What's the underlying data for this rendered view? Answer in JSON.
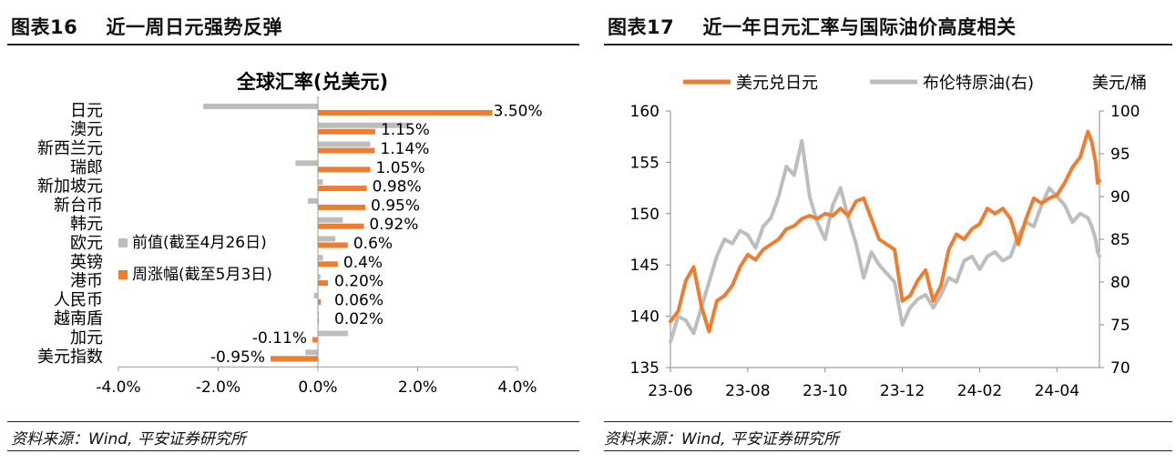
{
  "left_panel": {
    "figure_title": "图表16    近一周日元强势反弹",
    "source": "资料来源：Wind, 平安证券研究所"
  },
  "right_panel": {
    "figure_title": "图表17    近一年日元汇率与国际油价高度相关",
    "source": "资料来源：Wind, 平安证券研究所"
  },
  "colors": {
    "orange": "#ED7D31",
    "gray": "#BDBDBD",
    "axis": "#888888"
  },
  "chart_data": [
    {
      "type": "bar",
      "orientation": "horizontal",
      "title": "全球汇率(兑美元)",
      "categories": [
        "日元",
        "澳元",
        "新西兰元",
        "瑞郎",
        "新加坡元",
        "新台币",
        "韩元",
        "欧元",
        "英镑",
        "港币",
        "人民币",
        "越南盾",
        "加元",
        "美元指数"
      ],
      "series": [
        {
          "name": "前值(截至4月26日)",
          "color": "#BDBDBD",
          "values": [
            -2.3,
            1.8,
            1.05,
            -0.45,
            0.1,
            -0.2,
            0.5,
            0.35,
            0.1,
            0.05,
            -0.08,
            0.02,
            0.6,
            -0.25
          ]
        },
        {
          "name": "周涨幅(截至5月3日)",
          "color": "#ED7D31",
          "values": [
            3.5,
            1.15,
            1.14,
            1.05,
            0.98,
            0.95,
            0.92,
            0.6,
            0.4,
            0.2,
            0.06,
            0.02,
            -0.11,
            -0.95
          ]
        }
      ],
      "data_labels": [
        "3.50%",
        "1.15%",
        "1.14%",
        "1.05%",
        "0.98%",
        "0.95%",
        "0.92%",
        "0.6%",
        "0.4%",
        "0.20%",
        "0.06%",
        "0.02%",
        "-0.11%",
        "-0.95%"
      ],
      "xlim": [
        -4.0,
        4.0
      ],
      "xticks": [
        "-4.0%",
        "-2.0%",
        "0.0%",
        "2.0%",
        "4.0%"
      ],
      "legend_position": "left-middle",
      "grid": false
    },
    {
      "type": "line",
      "x_ticks": [
        "23-06",
        "23-08",
        "23-10",
        "23-12",
        "24-02",
        "24-04"
      ],
      "x_tick_months": [
        0,
        2,
        4,
        6,
        8,
        10
      ],
      "x_range_months": [
        0,
        11.1
      ],
      "series": [
        {
          "name": "美元兑日元",
          "color": "#ED7D31",
          "axis": "left",
          "x_months": [
            0,
            0.2,
            0.4,
            0.6,
            0.8,
            1.0,
            1.2,
            1.4,
            1.6,
            1.8,
            2.0,
            2.2,
            2.4,
            2.6,
            2.8,
            3.0,
            3.2,
            3.4,
            3.6,
            3.8,
            4.0,
            4.2,
            4.4,
            4.6,
            4.8,
            5.0,
            5.2,
            5.4,
            5.6,
            5.8,
            6.0,
            6.2,
            6.4,
            6.6,
            6.8,
            7.0,
            7.2,
            7.4,
            7.6,
            7.8,
            8.0,
            8.2,
            8.4,
            8.6,
            8.8,
            9.0,
            9.2,
            9.4,
            9.6,
            9.8,
            10.0,
            10.2,
            10.4,
            10.6,
            10.8,
            10.9,
            11.0,
            11.05,
            11.1
          ],
          "values": [
            139.5,
            140.5,
            143.5,
            144.8,
            141.0,
            138.5,
            141.5,
            142.0,
            143.0,
            144.8,
            146.0,
            145.5,
            146.5,
            147.0,
            147.5,
            148.5,
            148.8,
            149.5,
            149.8,
            149.5,
            150.0,
            149.8,
            150.5,
            149.8,
            151.2,
            151.5,
            149.5,
            147.5,
            147.0,
            146.5,
            141.5,
            142.0,
            143.5,
            144.5,
            141.5,
            143.0,
            146.5,
            148.0,
            147.5,
            148.5,
            149.0,
            150.5,
            150.0,
            150.5,
            149.5,
            147.0,
            149.5,
            151.5,
            151.0,
            151.5,
            151.8,
            153.0,
            154.5,
            155.5,
            158.0,
            157.0,
            155.0,
            153.0,
            153.2
          ]
        },
        {
          "name": "布伦特原油(右)",
          "color": "#BDBDBD",
          "axis": "right",
          "x_months": [
            0,
            0.2,
            0.4,
            0.6,
            0.8,
            1.0,
            1.2,
            1.4,
            1.6,
            1.8,
            2.0,
            2.2,
            2.4,
            2.6,
            2.8,
            3.0,
            3.2,
            3.4,
            3.6,
            3.8,
            4.0,
            4.2,
            4.4,
            4.6,
            4.8,
            5.0,
            5.2,
            5.4,
            5.6,
            5.8,
            6.0,
            6.2,
            6.4,
            6.6,
            6.8,
            7.0,
            7.2,
            7.4,
            7.6,
            7.8,
            8.0,
            8.2,
            8.4,
            8.6,
            8.8,
            9.0,
            9.2,
            9.4,
            9.6,
            9.8,
            10.0,
            10.2,
            10.4,
            10.6,
            10.8,
            10.9,
            11.0,
            11.05,
            11.1
          ],
          "values": [
            73.0,
            76.0,
            75.5,
            74.0,
            77.0,
            80.0,
            83.0,
            85.0,
            84.5,
            86.0,
            85.5,
            84.0,
            86.5,
            87.5,
            90.0,
            93.5,
            92.5,
            96.5,
            90.0,
            87.0,
            85.0,
            89.0,
            91.0,
            87.5,
            84.5,
            80.5,
            83.5,
            82.0,
            81.0,
            80.0,
            75.0,
            77.0,
            78.0,
            78.5,
            77.0,
            78.5,
            80.5,
            80.0,
            82.5,
            83.0,
            81.5,
            83.0,
            83.5,
            82.5,
            83.0,
            85.5,
            87.0,
            86.5,
            89.0,
            91.0,
            90.0,
            89.0,
            87.0,
            88.0,
            87.5,
            86.5,
            85.0,
            83.5,
            83.0
          ]
        }
      ],
      "y_left": {
        "min": 135,
        "max": 160,
        "ticks": [
          135,
          140,
          145,
          150,
          155,
          160
        ]
      },
      "y_right": {
        "min": 70,
        "max": 100,
        "ticks": [
          70,
          75,
          80,
          85,
          90,
          95,
          100
        ],
        "unit_label": "美元/桶"
      },
      "legend_position": "top",
      "grid": false
    }
  ]
}
